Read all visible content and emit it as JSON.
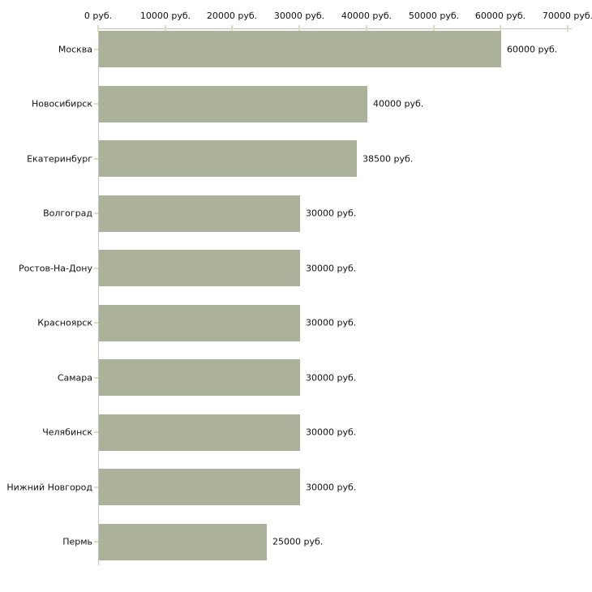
{
  "chart_data": {
    "type": "bar",
    "orientation": "horizontal",
    "title": "",
    "unit": "руб.",
    "categories": [
      "Москва",
      "Новосибирск",
      "Екатеринбург",
      "Волгоград",
      "Ростов-На-Дону",
      "Красноярск",
      "Самара",
      "Челябинск",
      "Нижний Новгород",
      "Пермь"
    ],
    "values": [
      60000,
      40000,
      38500,
      30000,
      30000,
      30000,
      30000,
      30000,
      30000,
      25000
    ],
    "bar_labels": [
      "60000 руб.",
      "40000 руб.",
      "38500 руб.",
      "30000 руб.",
      "30000 руб.",
      "30000 руб.",
      "30000 руб.",
      "30000 руб.",
      "30000 руб.",
      "25000 руб."
    ],
    "x_tick_values": [
      0,
      10000,
      20000,
      30000,
      40000,
      50000,
      60000,
      70000
    ],
    "x_tick_labels": [
      "0 руб.",
      "10000 руб.",
      "20000 руб.",
      "30000 руб.",
      "40000 руб.",
      "50000 руб.",
      "60000 руб.",
      "70000 руб."
    ],
    "xlim": [
      0,
      70000
    ],
    "grid": false,
    "legend_position": "none",
    "colors": {
      "bar": "#acb299",
      "axis": "#c4c4c2",
      "tick": "#dcddbe",
      "text": "#111111",
      "background": "#ffffff"
    }
  }
}
